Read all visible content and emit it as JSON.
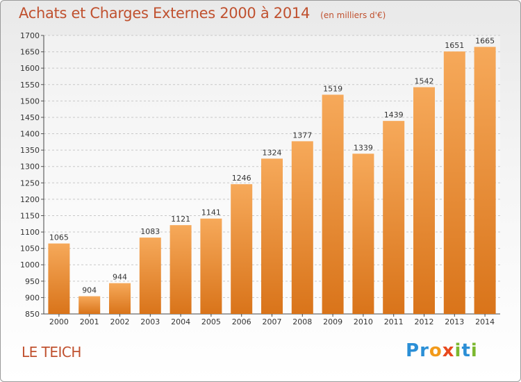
{
  "header": {
    "title": "Achats et Charges Externes 2000 à 2014",
    "unit_note": "(en milliers d'€)"
  },
  "footer": {
    "place": "LE TEICH",
    "brand_letters": [
      {
        "char": "P",
        "color": "#2b8fd6"
      },
      {
        "char": "r",
        "color": "#2b8fd6"
      },
      {
        "char": "o",
        "color": "#f29a1a"
      },
      {
        "char": "x",
        "color": "#e8491e"
      },
      {
        "char": "i",
        "color": "#7cb82f"
      },
      {
        "char": "t",
        "color": "#2b8fd6"
      },
      {
        "char": "i",
        "color": "#7cb82f"
      }
    ]
  },
  "colors": {
    "bar_top": "#f6a95a",
    "bar_bottom": "#d9741a",
    "grid": "#c8c8c8",
    "title": "#c0512f"
  },
  "chart_data": {
    "type": "bar",
    "title": "Achats et Charges Externes 2000 à 2014",
    "subtitle": "(en milliers d'€)",
    "categories": [
      "2000",
      "2001",
      "2002",
      "2003",
      "2004",
      "2005",
      "2006",
      "2007",
      "2008",
      "2009",
      "2010",
      "2011",
      "2012",
      "2013",
      "2014"
    ],
    "values": [
      1065,
      904,
      944,
      1083,
      1121,
      1141,
      1246,
      1324,
      1377,
      1519,
      1339,
      1439,
      1542,
      1651,
      1665
    ],
    "ylim": [
      850,
      1700
    ],
    "yticks": [
      850,
      900,
      950,
      1000,
      1050,
      1100,
      1150,
      1200,
      1250,
      1300,
      1350,
      1400,
      1450,
      1500,
      1550,
      1600,
      1650,
      1700
    ],
    "grid": true,
    "data_labels": true
  }
}
